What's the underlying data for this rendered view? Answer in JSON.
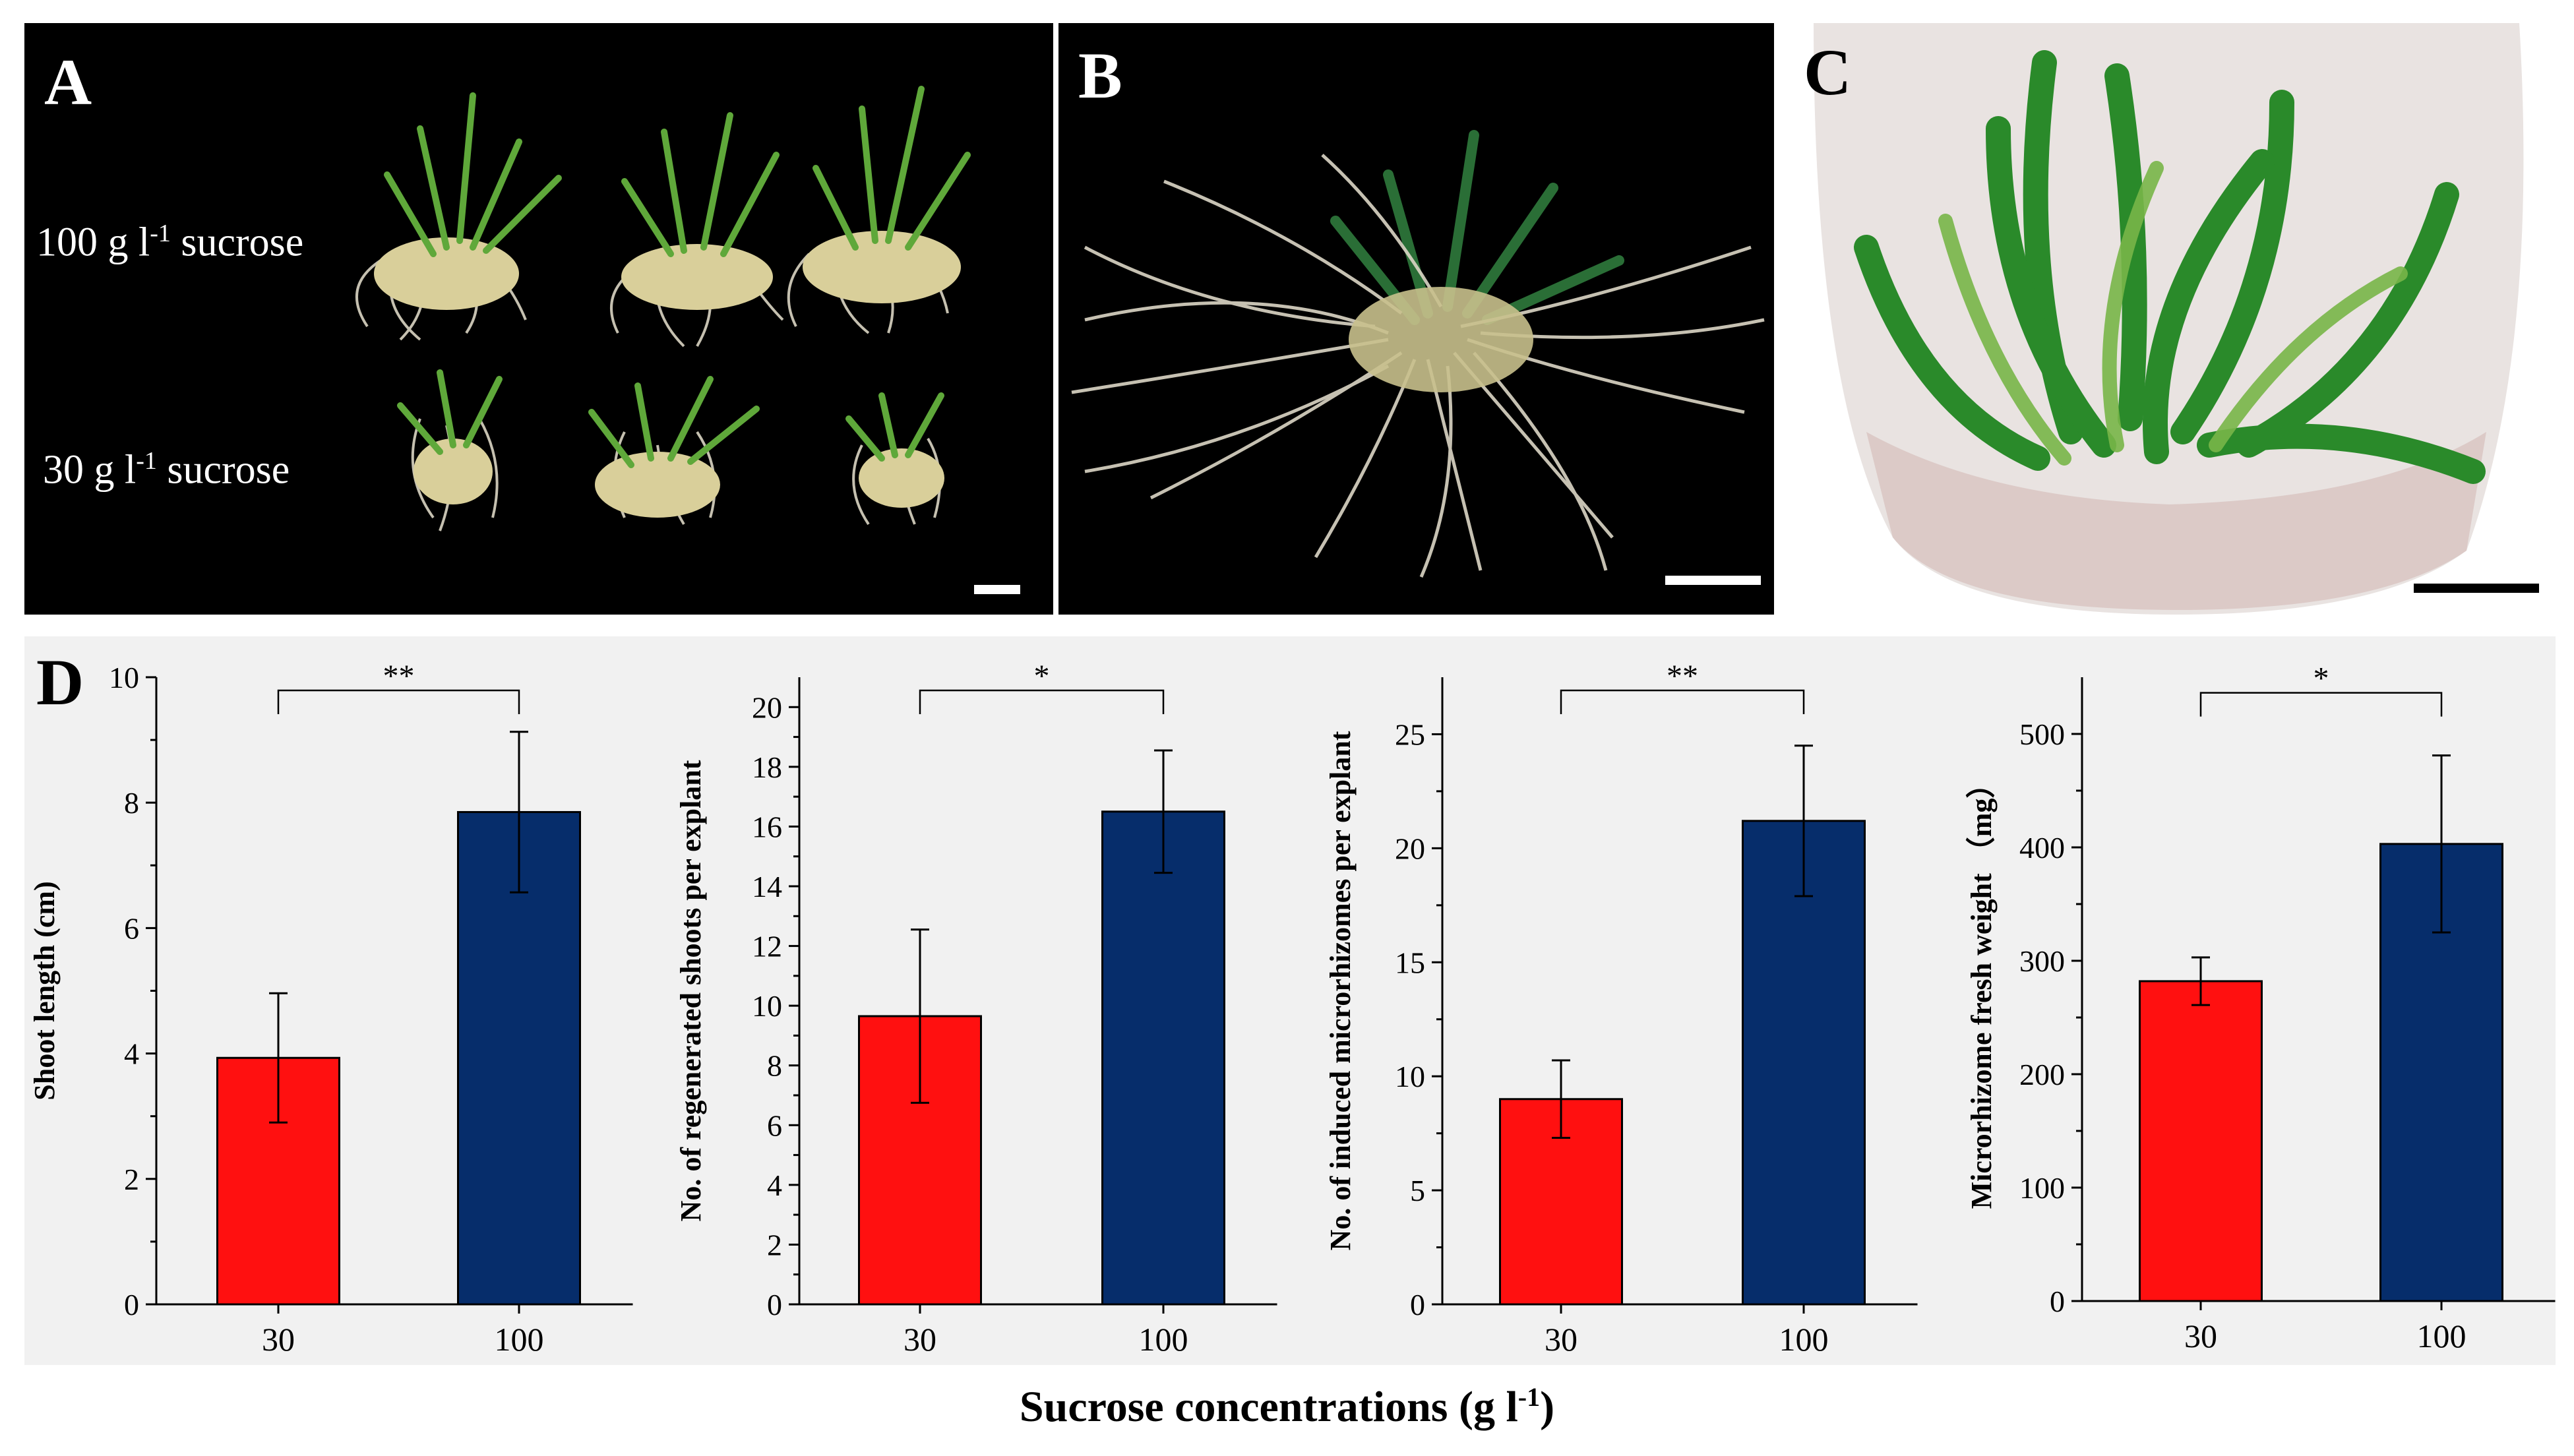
{
  "panels": {
    "a": {
      "letter": "A",
      "label_top": {
        "prefix": "100 g l",
        "sup": "-1",
        "suffix": " sucrose"
      },
      "label_bottom": {
        "prefix": "30 g l",
        "sup": "-1",
        "suffix": " sucrose"
      }
    },
    "b": {
      "letter": "B"
    },
    "c": {
      "letter": "C"
    },
    "d": {
      "letter": "D"
    }
  },
  "x_common_label": {
    "prefix": "Sucrose concentrations (g l",
    "sup": "-1",
    "suffix": ")"
  },
  "colors": {
    "bar_30": "#ff1010",
    "bar_100": "#062d6b",
    "panel_bg": "#f1f1f1"
  },
  "chart_data": [
    {
      "type": "bar",
      "categories": [
        "30",
        "100"
      ],
      "values": [
        3.93,
        7.85
      ],
      "errors": [
        1.03,
        1.28
      ],
      "ylabel": "Shoot length (cm)",
      "ylim": [
        0,
        10
      ],
      "ticks": [
        0,
        2,
        4,
        6,
        8,
        10
      ],
      "significance": "**"
    },
    {
      "type": "bar",
      "categories": [
        "30",
        "100"
      ],
      "values": [
        9.65,
        16.5
      ],
      "errors": [
        2.9,
        2.05
      ],
      "ylabel": "No. of regenerated shoots per explant",
      "ylim": [
        0,
        21
      ],
      "ticks": [
        0,
        2,
        4,
        6,
        8,
        10,
        12,
        14,
        16,
        18,
        20
      ],
      "significance": "*"
    },
    {
      "type": "bar",
      "categories": [
        "30",
        "100"
      ],
      "values": [
        9.0,
        21.2
      ],
      "errors": [
        1.7,
        3.3
      ],
      "ylabel": "No. of induced microrhizomes per explant",
      "ylim": [
        0,
        27.5
      ],
      "ticks": [
        0,
        5,
        10,
        15,
        20,
        25
      ],
      "significance": "**"
    },
    {
      "type": "bar",
      "categories": [
        "30",
        "100"
      ],
      "values": [
        282,
        403
      ],
      "errors": [
        21,
        78
      ],
      "ylabel": "Microrhizome fresh weight （mg）",
      "ylim": [
        0,
        550
      ],
      "ticks": [
        0,
        100,
        200,
        300,
        400,
        500
      ],
      "significance": "*"
    }
  ]
}
